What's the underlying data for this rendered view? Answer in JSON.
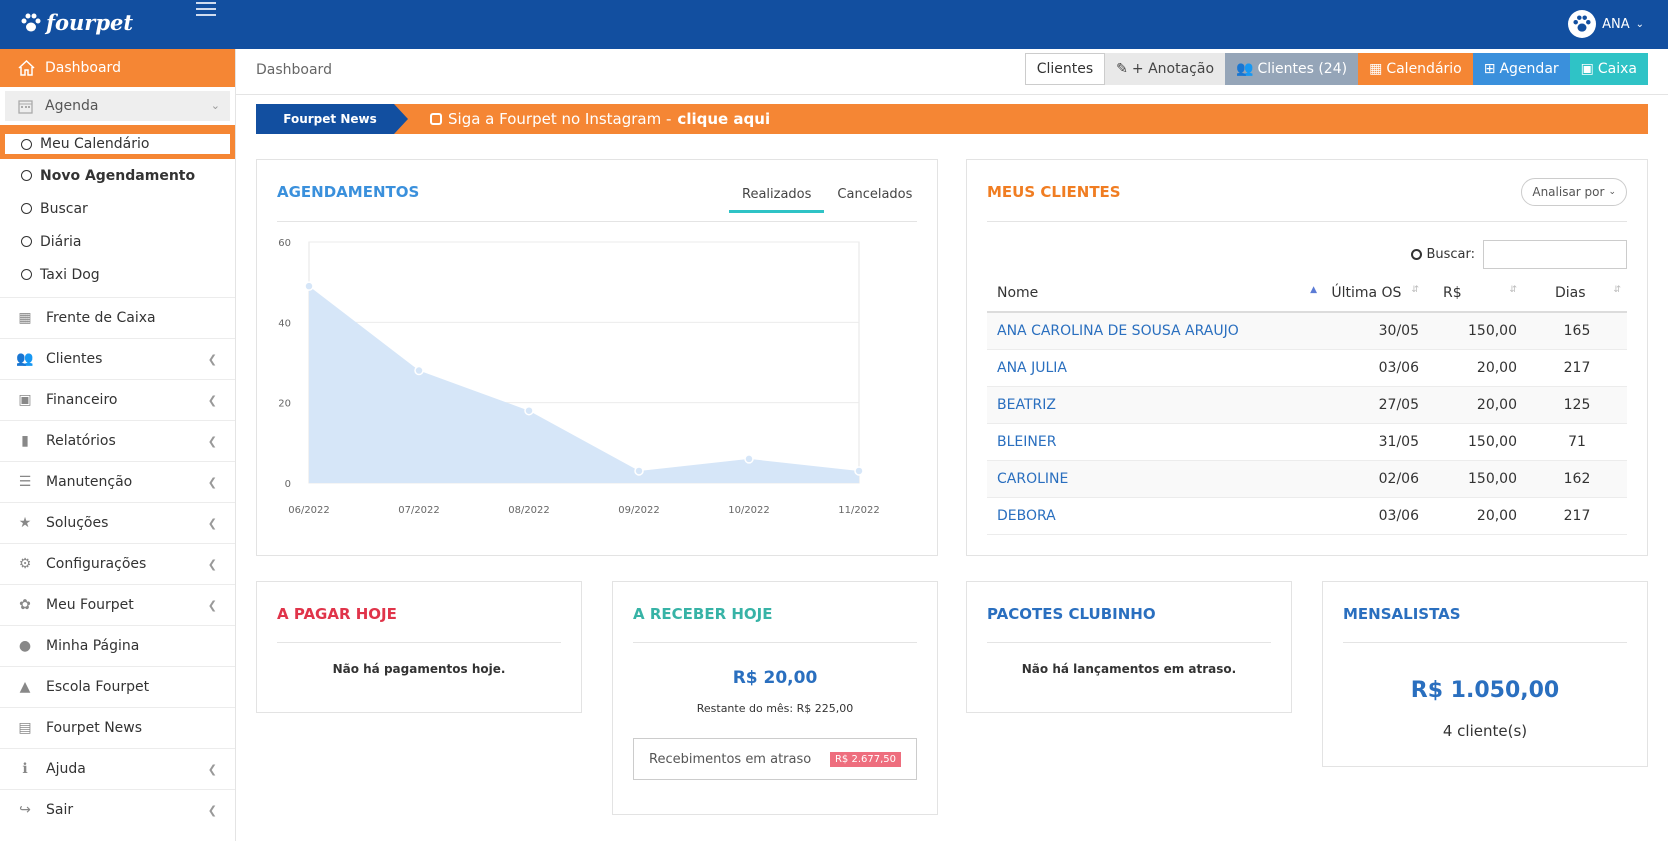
{
  "app": {
    "logo": "fourpet",
    "user": "ANA"
  },
  "sidebar": {
    "dashboard": "Dashboard",
    "agenda": "Agenda",
    "sub": [
      "Meu Calendário",
      "Novo Agendamento",
      "Buscar",
      "Diária",
      "Taxi Dog"
    ],
    "items": [
      {
        "label": "Frente de Caixa",
        "icon": "calculator-icon",
        "arrow": false
      },
      {
        "label": "Clientes",
        "icon": "users-icon",
        "arrow": true
      },
      {
        "label": "Financeiro",
        "icon": "money-icon",
        "arrow": true
      },
      {
        "label": "Relatórios",
        "icon": "bar-chart-icon",
        "arrow": true
      },
      {
        "label": "Manutenção",
        "icon": "database-icon",
        "arrow": true
      },
      {
        "label": "Soluções",
        "icon": "star-icon",
        "arrow": true
      },
      {
        "label": "Configurações",
        "icon": "gears-icon",
        "arrow": true
      },
      {
        "label": "Meu Fourpet",
        "icon": "paw-icon",
        "arrow": true
      },
      {
        "label": "Minha Página",
        "icon": "globe-icon",
        "arrow": false
      },
      {
        "label": "Escola Fourpet",
        "icon": "graduation-cap-icon",
        "arrow": false
      },
      {
        "label": "Fourpet News",
        "icon": "newspaper-icon",
        "arrow": false
      },
      {
        "label": "Ajuda",
        "icon": "info-icon",
        "arrow": true
      },
      {
        "label": "Sair",
        "icon": "sign-out-icon",
        "arrow": true
      }
    ]
  },
  "header": {
    "breadcrumb": "Dashboard",
    "buttons": [
      "Clientes",
      "+ Anotação",
      "Clientes (24)",
      "Calendário",
      "Agendar",
      "Caixa"
    ]
  },
  "news": {
    "tag": "Fourpet News",
    "text": "Siga a Fourpet no Instagram - ",
    "link": "clique aqui"
  },
  "agendamentos": {
    "title": "AGENDAMENTOS",
    "tabs": [
      "Realizados",
      "Cancelados"
    ]
  },
  "chart_data": {
    "type": "area",
    "x": [
      "06/2022",
      "07/2022",
      "08/2022",
      "09/2022",
      "10/2022",
      "11/2022"
    ],
    "values": [
      49,
      28,
      18,
      3,
      6,
      3
    ],
    "ylim": [
      0,
      60
    ],
    "yticks": [
      0,
      20,
      40,
      60
    ],
    "color": "#d6e6f8",
    "grid": true,
    "title": "",
    "xlabel": "",
    "ylabel": ""
  },
  "clientes": {
    "title": "MEUS CLIENTES",
    "analyze": "Analisar por",
    "search_label": "Buscar:",
    "search_value": "",
    "columns": [
      "Nome",
      "Última OS",
      "R$",
      "Dias"
    ],
    "rows": [
      [
        "ANA CAROLINA DE SOUSA ARAUJO",
        "30/05",
        "150,00",
        "165"
      ],
      [
        "ANA JULIA",
        "03/06",
        "20,00",
        "217"
      ],
      [
        "BEATRIZ",
        "27/05",
        "20,00",
        "125"
      ],
      [
        "BLEINER",
        "31/05",
        "150,00",
        "71"
      ],
      [
        "CAROLINE",
        "02/06",
        "150,00",
        "162"
      ],
      [
        "DEBORA",
        "03/06",
        "20,00",
        "217"
      ]
    ]
  },
  "pagar": {
    "title": "A PAGAR HOJE",
    "msg": "Não há pagamentos hoje."
  },
  "receber": {
    "title": "A RECEBER HOJE",
    "value": "R$ 20,00",
    "sub": "Restante do mês: R$ 225,00",
    "late_label": "Recebimentos em atraso",
    "late_value": "R$ 2.677,50"
  },
  "pacotes": {
    "title": "PACOTES CLUBINHO",
    "msg": "Não há lançamentos em atraso."
  },
  "mensalistas": {
    "title": "MENSALISTAS",
    "value": "R$ 1.050,00",
    "sub": "4 cliente(s)"
  },
  "colors": {
    "blue": "#124fa0",
    "orange": "#f58634",
    "link": "#2a6fbf",
    "teal": "#2fc3c6",
    "red": "#e0344a"
  }
}
